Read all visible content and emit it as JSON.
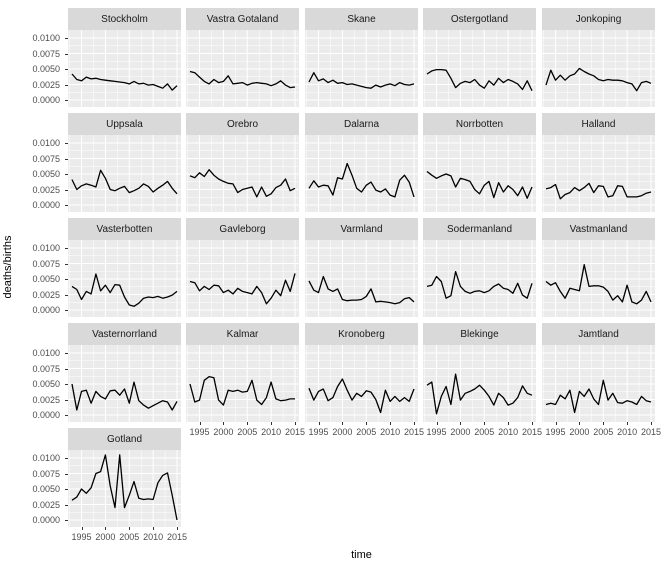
{
  "chart_data": {
    "type": "line",
    "title": "",
    "xlabel": "time",
    "ylabel": "deaths/births",
    "x": [
      1993,
      1994,
      1995,
      1996,
      1997,
      1998,
      1999,
      2000,
      2001,
      2002,
      2003,
      2004,
      2005,
      2006,
      2007,
      2008,
      2009,
      2010,
      2011,
      2012,
      2013,
      2014,
      2015
    ],
    "x_breaks": [
      1995,
      2000,
      2005,
      2010,
      2015
    ],
    "x_minor_breaks": [
      1992.5,
      1997.5,
      2002.5,
      2007.5,
      2012.5
    ],
    "x_tick_labels": [
      "1995",
      "2000",
      "2005",
      "2010",
      "2015"
    ],
    "y_breaks": [
      0.0,
      0.0025,
      0.005,
      0.0075,
      0.01
    ],
    "y_minor_breaks": [
      0.00125,
      0.00375,
      0.00625,
      0.00875
    ],
    "y_tick_labels": [
      "0.0000",
      "0.0025",
      "0.0050",
      "0.0075",
      "0.0100"
    ],
    "ylim": [
      -0.00028,
      0.01133
    ],
    "grid": true,
    "legend": "none",
    "facet_columns": 5,
    "facets": [
      {
        "name": "Stockholm",
        "values": [
          0.0042,
          0.0033,
          0.0031,
          0.0037,
          0.0034,
          0.0035,
          0.0033,
          0.0032,
          0.0031,
          0.003,
          0.0029,
          0.0028,
          0.0026,
          0.003,
          0.0026,
          0.0027,
          0.0024,
          0.0025,
          0.0022,
          0.0019,
          0.0026,
          0.0016,
          0.0023
        ]
      },
      {
        "name": "Vastra Gotaland",
        "values": [
          0.0046,
          0.0044,
          0.0037,
          0.003,
          0.0026,
          0.0033,
          0.0028,
          0.003,
          0.0039,
          0.0026,
          0.0027,
          0.0028,
          0.0024,
          0.0027,
          0.0028,
          0.0027,
          0.0026,
          0.0023,
          0.0026,
          0.0031,
          0.0024,
          0.002,
          0.0021
        ]
      },
      {
        "name": "Skane",
        "values": [
          0.0029,
          0.0044,
          0.0031,
          0.0034,
          0.0028,
          0.0032,
          0.0027,
          0.0028,
          0.0025,
          0.0026,
          0.0024,
          0.0022,
          0.002,
          0.0019,
          0.0024,
          0.0021,
          0.0024,
          0.0026,
          0.0023,
          0.0028,
          0.0025,
          0.0024,
          0.0026
        ]
      },
      {
        "name": "Ostergotland",
        "values": [
          0.0042,
          0.0047,
          0.0049,
          0.0049,
          0.0048,
          0.0035,
          0.002,
          0.0027,
          0.003,
          0.0028,
          0.0033,
          0.0024,
          0.0019,
          0.0031,
          0.0024,
          0.0035,
          0.0028,
          0.0033,
          0.003,
          0.0026,
          0.0017,
          0.0031,
          0.0015
        ]
      },
      {
        "name": "Jonkoping",
        "values": [
          0.0024,
          0.0048,
          0.0032,
          0.004,
          0.0032,
          0.0039,
          0.0042,
          0.0051,
          0.0046,
          0.0042,
          0.0039,
          0.0033,
          0.0031,
          0.0033,
          0.0032,
          0.0032,
          0.0031,
          0.0028,
          0.0026,
          0.0015,
          0.0028,
          0.003,
          0.0027
        ]
      },
      {
        "name": "Uppsala",
        "values": [
          0.0041,
          0.0025,
          0.0031,
          0.0034,
          0.0032,
          0.0029,
          0.0056,
          0.0043,
          0.0025,
          0.0023,
          0.0027,
          0.003,
          0.002,
          0.0023,
          0.0027,
          0.0034,
          0.003,
          0.0021,
          0.0027,
          0.0032,
          0.0038,
          0.0027,
          0.0018
        ]
      },
      {
        "name": "Orebro",
        "values": [
          0.0047,
          0.0044,
          0.0052,
          0.0046,
          0.0057,
          0.0048,
          0.0042,
          0.0038,
          0.0035,
          0.0034,
          0.002,
          0.0025,
          0.0027,
          0.0029,
          0.0013,
          0.0029,
          0.0014,
          0.0018,
          0.0028,
          0.0032,
          0.0042,
          0.0023,
          0.0027
        ]
      },
      {
        "name": "Dalarna",
        "values": [
          0.0027,
          0.0039,
          0.0029,
          0.0032,
          0.0031,
          0.0016,
          0.0044,
          0.0042,
          0.0067,
          0.0048,
          0.0027,
          0.0021,
          0.0032,
          0.0037,
          0.0024,
          0.0021,
          0.0026,
          0.0016,
          0.0013,
          0.004,
          0.0048,
          0.0037,
          0.0013
        ]
      },
      {
        "name": "Norrbotten",
        "values": [
          0.0054,
          0.0048,
          0.0043,
          0.0047,
          0.005,
          0.0047,
          0.0029,
          0.0043,
          0.0041,
          0.0038,
          0.0025,
          0.0018,
          0.0032,
          0.0038,
          0.0012,
          0.0036,
          0.0021,
          0.0031,
          0.0025,
          0.0015,
          0.0029,
          0.0011,
          0.0029
        ]
      },
      {
        "name": "Halland",
        "values": [
          0.0026,
          0.0028,
          0.0033,
          0.001,
          0.0017,
          0.002,
          0.0028,
          0.0023,
          0.0028,
          0.0035,
          0.002,
          0.0031,
          0.003,
          0.0013,
          0.0015,
          0.0031,
          0.003,
          0.0013,
          0.0013,
          0.0013,
          0.0015,
          0.0019,
          0.0021
        ]
      },
      {
        "name": "Vasterbotten",
        "values": [
          0.0038,
          0.0033,
          0.0017,
          0.003,
          0.0026,
          0.0058,
          0.0031,
          0.004,
          0.0028,
          0.0041,
          0.004,
          0.0021,
          0.0008,
          0.0006,
          0.0011,
          0.0019,
          0.0021,
          0.002,
          0.0022,
          0.0019,
          0.0021,
          0.0024,
          0.003
        ]
      },
      {
        "name": "Gavleborg",
        "values": [
          0.0046,
          0.0044,
          0.0031,
          0.0038,
          0.0033,
          0.004,
          0.0039,
          0.0028,
          0.0032,
          0.0026,
          0.0035,
          0.003,
          0.0028,
          0.0026,
          0.0038,
          0.0028,
          0.001,
          0.0019,
          0.0032,
          0.0023,
          0.0048,
          0.003,
          0.0059
        ]
      },
      {
        "name": "Varmland",
        "values": [
          0.0047,
          0.0032,
          0.0028,
          0.0054,
          0.0034,
          0.003,
          0.0034,
          0.0017,
          0.0015,
          0.0016,
          0.0016,
          0.0017,
          0.0022,
          0.0034,
          0.0013,
          0.0014,
          0.0013,
          0.0012,
          0.001,
          0.0012,
          0.0018,
          0.002,
          0.0013
        ]
      },
      {
        "name": "Sodermanland",
        "values": [
          0.0038,
          0.004,
          0.0054,
          0.0046,
          0.0019,
          0.0023,
          0.0062,
          0.0038,
          0.003,
          0.0027,
          0.003,
          0.0031,
          0.0028,
          0.0031,
          0.0038,
          0.0042,
          0.0035,
          0.0033,
          0.0027,
          0.0043,
          0.0024,
          0.0019,
          0.0043
        ]
      },
      {
        "name": "Vastmanland",
        "values": [
          0.0046,
          0.004,
          0.0044,
          0.003,
          0.0019,
          0.0035,
          0.0033,
          0.0031,
          0.0073,
          0.0038,
          0.0039,
          0.0039,
          0.0037,
          0.003,
          0.0016,
          0.0023,
          0.0013,
          0.004,
          0.0013,
          0.001,
          0.0016,
          0.003,
          0.0013
        ]
      },
      {
        "name": "Vasternorrland",
        "values": [
          0.005,
          0.0008,
          0.0038,
          0.004,
          0.0019,
          0.0038,
          0.003,
          0.0026,
          0.0039,
          0.004,
          0.0032,
          0.0042,
          0.0019,
          0.0053,
          0.0023,
          0.0016,
          0.0011,
          0.0015,
          0.0019,
          0.0023,
          0.0021,
          0.0008,
          0.0022
        ]
      },
      {
        "name": "Kalmar",
        "values": [
          0.005,
          0.0021,
          0.0024,
          0.0056,
          0.0062,
          0.006,
          0.0024,
          0.0016,
          0.004,
          0.0038,
          0.004,
          0.0037,
          0.0038,
          0.0056,
          0.0024,
          0.0017,
          0.0028,
          0.0053,
          0.0026,
          0.0023,
          0.0024,
          0.0026,
          0.0026
        ]
      },
      {
        "name": "Kronoberg",
        "values": [
          0.0043,
          0.0024,
          0.0038,
          0.0042,
          0.0023,
          0.0028,
          0.0046,
          0.0058,
          0.004,
          0.0024,
          0.0035,
          0.003,
          0.0039,
          0.0037,
          0.0025,
          0.0004,
          0.004,
          0.0022,
          0.003,
          0.0022,
          0.0028,
          0.0022,
          0.0042
        ]
      },
      {
        "name": "Blekinge",
        "values": [
          0.0048,
          0.0053,
          0.0002,
          0.003,
          0.0046,
          0.0017,
          0.0066,
          0.0024,
          0.0035,
          0.0038,
          0.0042,
          0.0048,
          0.004,
          0.003,
          0.0016,
          0.0035,
          0.0028,
          0.0016,
          0.0019,
          0.0028,
          0.0047,
          0.0035,
          0.0032
        ]
      },
      {
        "name": "Jamtland",
        "values": [
          0.0017,
          0.0019,
          0.0017,
          0.0032,
          0.0026,
          0.004,
          0.0004,
          0.0038,
          0.003,
          0.0042,
          0.0026,
          0.0017,
          0.0056,
          0.0024,
          0.0035,
          0.002,
          0.0019,
          0.0023,
          0.0021,
          0.0017,
          0.003,
          0.0023,
          0.0021
        ]
      },
      {
        "name": "Gotland",
        "values": [
          0.0032,
          0.0037,
          0.005,
          0.0043,
          0.0052,
          0.0075,
          0.0078,
          0.0105,
          0.0055,
          0.002,
          0.0105,
          0.002,
          0.004,
          0.0062,
          0.0035,
          0.0033,
          0.0034,
          0.0033,
          0.006,
          0.0072,
          0.0076,
          0.004,
          0.0
        ]
      }
    ],
    "style": {
      "panel_background": "#EBEBEB",
      "strip_background": "#D9D9D9",
      "grid_color": "#FFFFFF",
      "line_color": "#000000",
      "axis_text_color": "#4D4D4D",
      "strip_text_color": "#1A1A1A",
      "tick_mark_color": "#333333",
      "figure_background": "#FFFFFF"
    }
  }
}
